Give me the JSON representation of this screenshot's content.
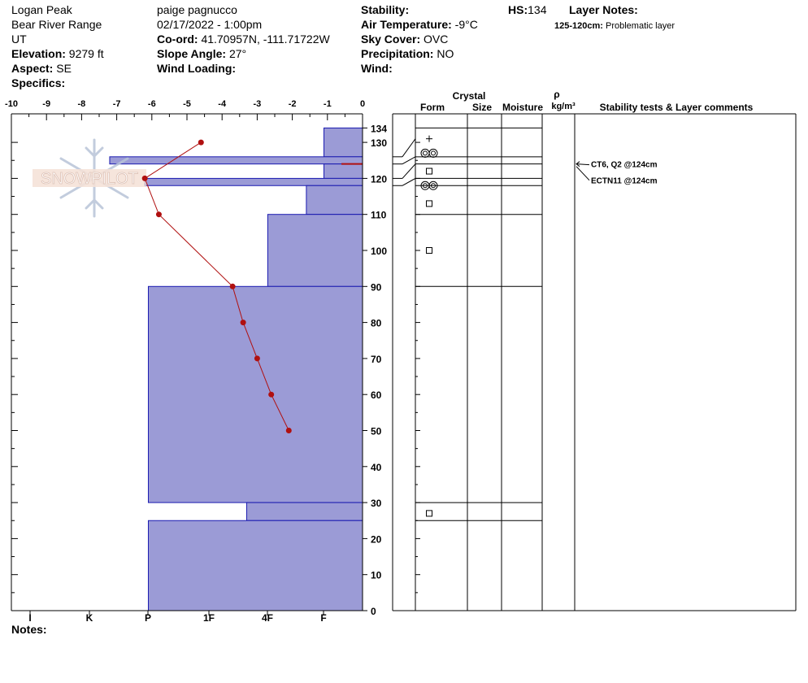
{
  "header": {
    "location": "Logan Peak",
    "range": "Bear River Range",
    "state": "UT",
    "elevation_label": "Elevation:",
    "elevation_value": "9279 ft",
    "aspect_label": "Aspect:",
    "aspect_value": "SE",
    "specifics_label": "Specifics:",
    "observer": "paige pagnucco",
    "datetime": "02/17/2022 - 1:00pm",
    "coord_label": "Co-ord:",
    "coord_value": "41.70957N, -111.71722W",
    "slope_label": "Slope Angle:",
    "slope_value": "27°",
    "wind_loading_label": "Wind Loading:",
    "stability_label": "Stability:",
    "air_temp_label": "Air Temperature:",
    "air_temp_value": "-9°C",
    "sky_label": "Sky Cover:",
    "sky_value": "OVC",
    "precip_label": "Precipitation:",
    "precip_value": "NO",
    "wind_label": "Wind:",
    "hs_label": "HS:",
    "hs_value": "134",
    "layer_notes_label": "Layer Notes:",
    "layer_note_range": "125-120cm:",
    "layer_note_text": "Problematic layer"
  },
  "notes_label": "Notes:",
  "logo_text": "SNOWPILOT",
  "colors": {
    "layer_fill": "#9b9bd6",
    "layer_stroke": "#1a1ab0",
    "temp": "#b01010",
    "weak_layer": "#b01010"
  },
  "table_headers": {
    "crystal": "Crystal",
    "form": "Form",
    "size": "Size",
    "moisture": "Moisture",
    "rho": "ρ",
    "density_unit": "kg/m³",
    "stability": "Stability tests & Layer comments"
  },
  "chart_data": {
    "type": "snow_profile",
    "depth_unit": "cm",
    "hs": 134,
    "depth_ticks": [
      0,
      10,
      20,
      30,
      40,
      50,
      60,
      70,
      80,
      90,
      100,
      110,
      120,
      130,
      134
    ],
    "temp_ticks": [
      -10,
      -9,
      -8,
      -7,
      -6,
      -5,
      -4,
      -3,
      -2,
      -1,
      0
    ],
    "temp_range": [
      -10,
      0
    ],
    "hardness_scale": [
      "I",
      "K",
      "P",
      "1F",
      "4F",
      "F"
    ],
    "layers": [
      {
        "top": 134,
        "bottom": 126,
        "hardness": -1.1
      },
      {
        "top": 126,
        "bottom": 124,
        "hardness": -7.2
      },
      {
        "top": 124,
        "bottom": 120,
        "hardness": -1.1
      },
      {
        "top": 120,
        "bottom": 118,
        "hardness": -6.2
      },
      {
        "top": 118,
        "bottom": 110,
        "hardness": -1.6
      },
      {
        "top": 110,
        "bottom": 90,
        "hardness": -2.7
      },
      {
        "top": 90,
        "bottom": 30,
        "hardness": -6.1
      },
      {
        "top": 30,
        "bottom": 25,
        "hardness": -3.3
      },
      {
        "top": 25,
        "bottom": 0,
        "hardness": -6.1
      }
    ],
    "weak_layer_depth": 124,
    "temperature_profile": [
      {
        "depth": 130,
        "temp": -4.6
      },
      {
        "depth": 120,
        "temp": -6.2
      },
      {
        "depth": 110,
        "temp": -5.8
      },
      {
        "depth": 90,
        "temp": -3.7
      },
      {
        "depth": 80,
        "temp": -3.4
      },
      {
        "depth": 70,
        "temp": -3.0
      },
      {
        "depth": 60,
        "temp": -2.6
      },
      {
        "depth": 50,
        "temp": -2.1
      }
    ],
    "crystal_forms": [
      {
        "depth": 131,
        "form": "plus"
      },
      {
        "depth": 127,
        "form": "double-ring"
      },
      {
        "depth": 122,
        "form": "square"
      },
      {
        "depth": 118,
        "form": "double-ring"
      },
      {
        "depth": 113,
        "form": "square"
      },
      {
        "depth": 100,
        "form": "square"
      },
      {
        "depth": 27,
        "form": "square"
      }
    ],
    "stability_tests": [
      {
        "text": "CT6, Q2 @124cm",
        "depth": 124
      },
      {
        "text": "ECTN11 @124cm",
        "depth": 124
      }
    ]
  }
}
